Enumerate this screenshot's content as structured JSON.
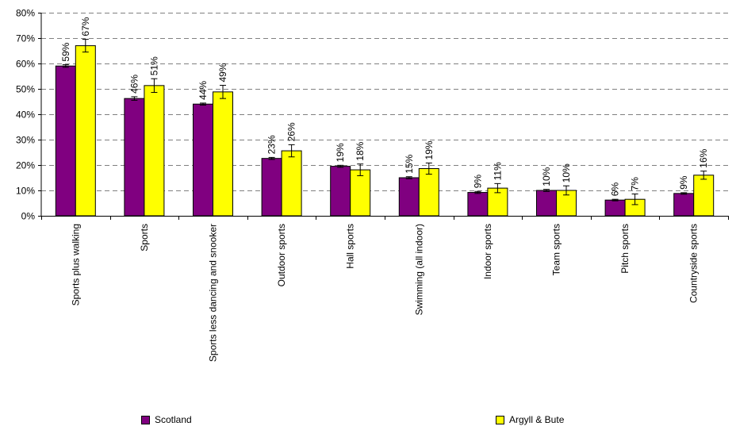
{
  "chart_data": {
    "type": "bar",
    "categories": [
      "Sports plus walking",
      "Sports",
      "Sports less dancing and snooker",
      "Outdoor sports",
      "Hall sports",
      "Swimming (all indoor)",
      "Indoor sports",
      "Team sports",
      "Pitch sports",
      "Countryside sports"
    ],
    "series": [
      {
        "name": "Scotland",
        "color": "#800080",
        "values": [
          59,
          46,
          44,
          23,
          19,
          15,
          9,
          10,
          6,
          9
        ],
        "plot_values": [
          59,
          46.2,
          44,
          22.6,
          19.5,
          15,
          9.2,
          10,
          6.2,
          8.8
        ],
        "error": [
          0.5,
          0.7,
          0.4,
          0.4,
          0.4,
          0.4,
          0.4,
          0.4,
          0.3,
          0.3
        ],
        "labels": [
          "59%",
          "46%",
          "44%",
          "23%",
          "19%",
          "15%",
          "9%",
          "10%",
          "6%",
          "9%"
        ]
      },
      {
        "name": "Argyll & Bute",
        "color": "#FFFF00",
        "values": [
          67,
          51,
          49,
          26,
          18,
          19,
          11,
          10,
          7,
          16
        ],
        "plot_values": [
          67,
          51.3,
          48.8,
          25.6,
          18.1,
          18.6,
          10.9,
          10,
          6.5,
          16
        ],
        "error": [
          2.5,
          2.7,
          2.6,
          2.4,
          2.3,
          2.2,
          1.8,
          1.8,
          2.1,
          1.6
        ],
        "labels": [
          "67%",
          "51%",
          "49%",
          "26%",
          "18%",
          "19%",
          "11%",
          "10%",
          "7%",
          "16%"
        ]
      }
    ],
    "y_ticks": [
      "0%",
      "10%",
      "20%",
      "30%",
      "40%",
      "50%",
      "60%",
      "70%",
      "80%"
    ],
    "ylim": [
      0,
      80
    ],
    "grid": true,
    "legend_position": "bottom"
  }
}
